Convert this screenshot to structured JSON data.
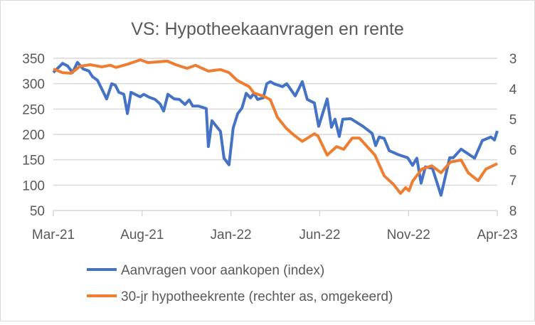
{
  "chart_data": {
    "type": "line",
    "title": "VS: Hypotheekaanvragen en rente",
    "x_unit": "months since Mar-21",
    "x_tick_labels": [
      "Mar-21",
      "Aug-21",
      "Jan-22",
      "Jun-22",
      "Nov-22",
      "Apr-23"
    ],
    "x_tick_values": [
      0,
      5,
      10,
      15,
      20,
      25
    ],
    "xlim": [
      0,
      25
    ],
    "y_left": {
      "ylim": [
        50,
        350
      ],
      "ticks": [
        50,
        100,
        150,
        200,
        250,
        300,
        350
      ],
      "tick_labels": [
        "50",
        "100",
        "150",
        "200",
        "250",
        "300",
        "350"
      ]
    },
    "y_right": {
      "ylim": [
        3,
        8
      ],
      "inverted": true,
      "ticks": [
        3,
        4,
        5,
        6,
        7,
        8
      ],
      "tick_labels": [
        "3",
        "4",
        "5",
        "6",
        "7",
        "8"
      ]
    },
    "grid": true,
    "legend_position": "bottom",
    "series": [
      {
        "name": "Aanvragen voor aankopen (index)",
        "axis": "left",
        "color": "#4472C4",
        "x": [
          0,
          0.52,
          0.8,
          1.08,
          1.36,
          1.68,
          2.0,
          2.2,
          2.48,
          2.68,
          3.0,
          3.29,
          3.49,
          3.69,
          3.97,
          4.17,
          4.37,
          4.89,
          5.09,
          5.41,
          5.73,
          6.01,
          6.21,
          6.45,
          6.81,
          7.09,
          7.41,
          7.65,
          7.85,
          8.17,
          8.61,
          8.73,
          8.93,
          9.41,
          9.61,
          9.89,
          10.13,
          10.38,
          10.62,
          10.86,
          11.1,
          11.3,
          11.5,
          11.82,
          12.02,
          12.22,
          12.42,
          12.9,
          13.14,
          13.62,
          14.02,
          14.3,
          14.7,
          14.94,
          15.42,
          15.66,
          15.86,
          16.1,
          16.3,
          16.75,
          17.43,
          17.95,
          18.15,
          18.35,
          18.63,
          18.91,
          19.43,
          19.95,
          20.23,
          20.47,
          20.71,
          20.95,
          21.35,
          21.83,
          22.32,
          22.52,
          22.96,
          23.72,
          24.16,
          24.64,
          24.84,
          25
        ],
        "y": [
          322,
          340,
          335,
          322,
          342,
          329,
          325,
          314,
          307,
          293,
          270,
          300,
          297,
          283,
          279,
          241,
          283,
          274,
          279,
          273,
          269,
          260,
          246,
          279,
          270,
          269,
          259,
          268,
          256,
          256,
          251,
          176,
          227,
          206,
          153,
          140,
          213,
          241,
          252,
          281,
          272,
          281,
          269,
          272,
          300,
          304,
          300,
          294,
          300,
          276,
          304,
          269,
          262,
          216,
          270,
          214,
          230,
          196,
          230,
          231,
          216,
          202,
          178,
          195,
          192,
          168,
          160,
          154,
          139,
          153,
          104,
          136,
          133,
          80,
          154,
          154,
          171,
          153,
          188,
          195,
          189,
          207
        ]
      },
      {
        "name": "30-jr hypotheekrente (rechter as, omgekeerd)",
        "axis": "right",
        "color": "#ED7D31",
        "x": [
          0,
          0.52,
          1.0,
          1.52,
          2.08,
          2.72,
          3.2,
          3.53,
          4.21,
          4.89,
          5.33,
          5.81,
          6.41,
          6.89,
          7.53,
          8.01,
          8.73,
          9.41,
          9.89,
          10.34,
          11.02,
          11.3,
          11.9,
          12.22,
          12.62,
          13.1,
          13.54,
          14.02,
          14.7,
          14.9,
          15.42,
          15.95,
          16.35,
          16.83,
          17.23,
          18.11,
          18.63,
          19.15,
          19.55,
          19.83,
          20.03,
          20.23,
          20.75,
          21.31,
          21.83,
          22.36,
          22.96,
          23.36,
          23.92,
          24.36,
          25
        ],
        "y": [
          3.35,
          3.47,
          3.49,
          3.26,
          3.21,
          3.28,
          3.23,
          3.3,
          3.19,
          3.05,
          3.14,
          3.12,
          3.09,
          3.21,
          3.33,
          3.23,
          3.42,
          3.37,
          3.47,
          3.72,
          3.93,
          4.14,
          4.26,
          4.36,
          4.94,
          5.29,
          5.52,
          5.73,
          5.48,
          5.55,
          6.18,
          5.9,
          5.99,
          5.62,
          5.62,
          6.18,
          6.86,
          7.14,
          7.44,
          7.25,
          7.35,
          7.04,
          6.64,
          6.53,
          6.76,
          6.41,
          6.34,
          6.76,
          7.02,
          6.64,
          6.46
        ]
      }
    ]
  }
}
